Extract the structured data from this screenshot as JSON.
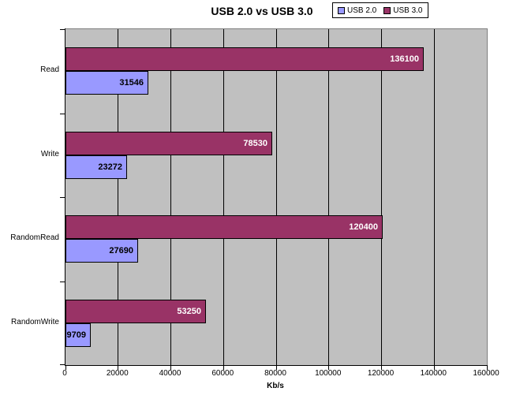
{
  "title": "USB 2.0 vs USB 3.0",
  "colors": {
    "chart_background": "#FFFFFF",
    "plot_background": "#C0C0C0",
    "plot_border": "#808080",
    "gridline": "#000000",
    "bar_border": "#000000",
    "usb2_series": "#9999FF",
    "usb3_series": "#993366"
  },
  "legend": {
    "items": [
      {
        "label": "USB 2.0",
        "color": "#9999FF"
      },
      {
        "label": "USB 3.0",
        "color": "#993366"
      }
    ]
  },
  "chart_data": {
    "type": "bar",
    "orientation": "horizontal",
    "title": "USB 2.0 vs USB 3.0",
    "categories": [
      "Read",
      "Write",
      "RandomRead",
      "RandomWrite"
    ],
    "series": [
      {
        "name": "USB 2.0",
        "color": "#9999FF",
        "label_color": "#000000",
        "values": [
          31546,
          23272,
          27690,
          9709
        ]
      },
      {
        "name": "USB 3.0",
        "color": "#993366",
        "label_color": "#FFFFFF",
        "values": [
          136100,
          78530,
          120400,
          53250
        ]
      }
    ],
    "xlabel": "Kb/s",
    "ylabel": "",
    "xlim": [
      0,
      160000
    ],
    "xticks": [
      0,
      20000,
      40000,
      60000,
      80000,
      100000,
      120000,
      140000,
      160000
    ],
    "grid": true,
    "legend_position": "top-right",
    "data_labels": "inside-end"
  }
}
